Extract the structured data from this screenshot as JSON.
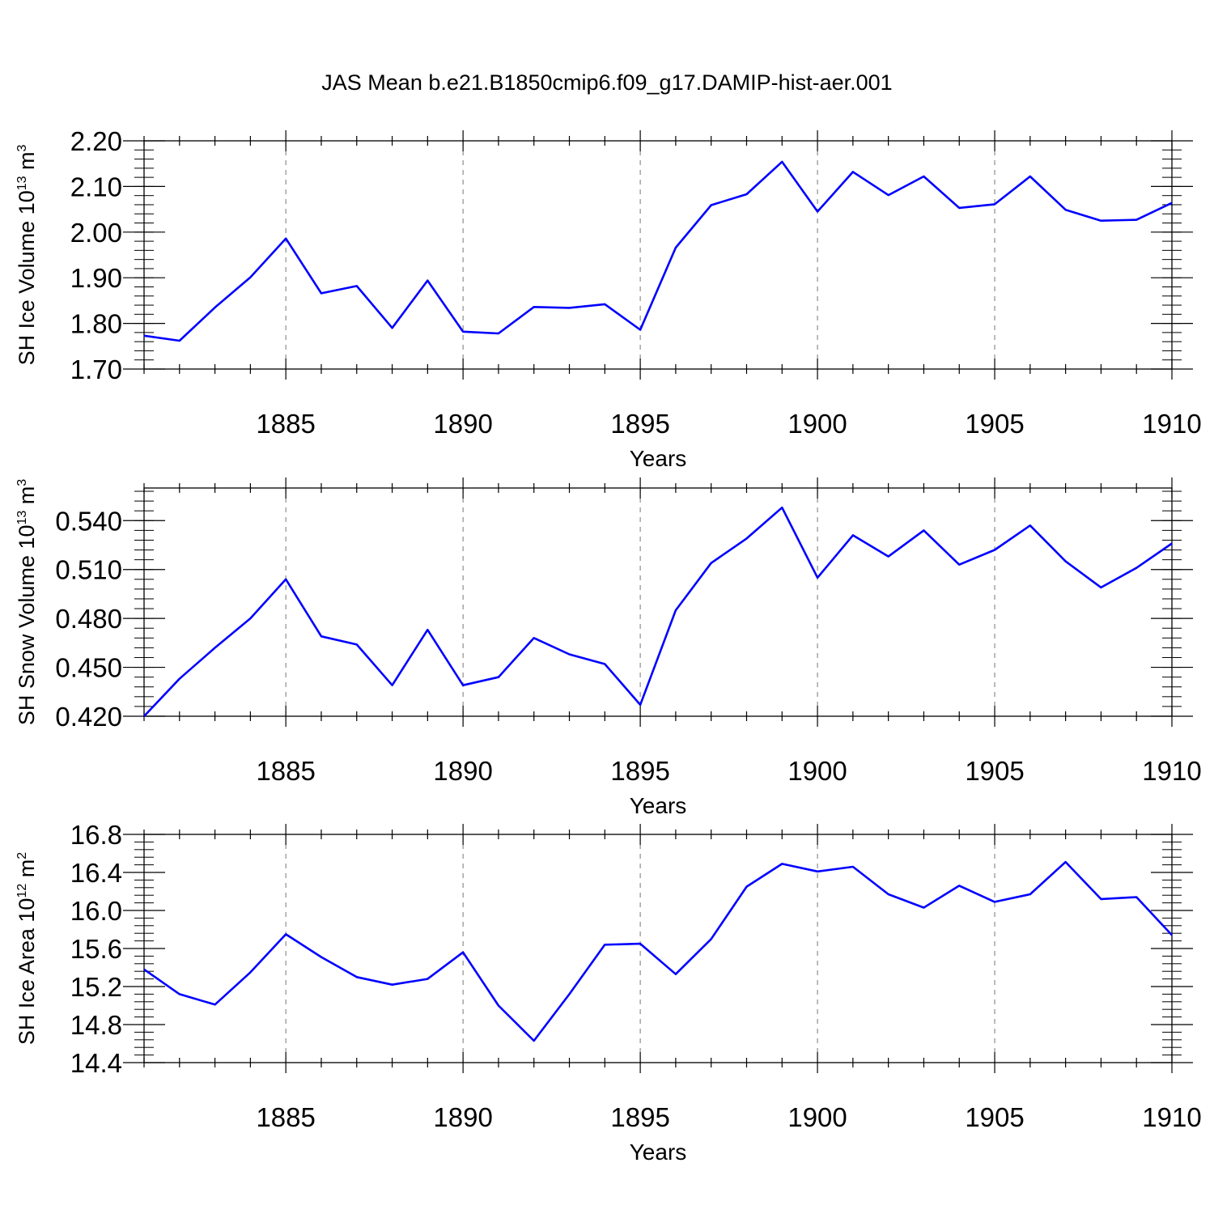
{
  "title": "JAS Mean b.e21.B1850cmip6.f09_g17.DAMIP-hist-aer.001",
  "colors": {
    "series": "#0000ff",
    "axis": "#000000",
    "grid": "#777777"
  },
  "chart_data": [
    {
      "type": "line",
      "ylabel_text": "SH Ice Volume 10",
      "ylabel_exp": "13",
      "ylabel_unit": " m",
      "ylabel_unit_exp": "3",
      "xlabel": "Years",
      "xlim": [
        1881,
        1910
      ],
      "ylim": [
        1.7,
        2.2
      ],
      "yticks": [
        1.7,
        1.8,
        1.9,
        2.0,
        2.1,
        2.2
      ],
      "ytick_labels": [
        "1.70",
        "1.80",
        "1.90",
        "2.00",
        "2.10",
        "2.20"
      ],
      "yminor_step": 0.02,
      "xticks": [
        1885,
        1890,
        1895,
        1900,
        1905,
        1910
      ],
      "xtick_labels": [
        "1885",
        "1890",
        "1895",
        "1900",
        "1905",
        "1910"
      ],
      "grid": "vertical-dashed",
      "x": [
        1881,
        1882,
        1883,
        1884,
        1885,
        1886,
        1887,
        1888,
        1889,
        1890,
        1891,
        1892,
        1893,
        1894,
        1895,
        1896,
        1897,
        1898,
        1899,
        1900,
        1901,
        1902,
        1903,
        1904,
        1905,
        1906,
        1907,
        1908,
        1909,
        1910
      ],
      "values": [
        1.773,
        1.762,
        1.835,
        1.901,
        1.986,
        1.866,
        1.882,
        1.79,
        1.894,
        1.782,
        1.778,
        1.836,
        1.834,
        1.842,
        1.786,
        1.966,
        2.059,
        2.083,
        2.154,
        2.045,
        2.132,
        2.081,
        2.122,
        2.053,
        2.061,
        2.122,
        2.049,
        2.025,
        2.027,
        2.064
      ]
    },
    {
      "type": "line",
      "ylabel_text": "SH Snow Volume 10",
      "ylabel_exp": "13",
      "ylabel_unit": " m",
      "ylabel_unit_exp": "3",
      "xlabel": "Years",
      "xlim": [
        1881,
        1910
      ],
      "ylim": [
        0.42,
        0.56
      ],
      "yticks": [
        0.42,
        0.45,
        0.48,
        0.51,
        0.54
      ],
      "ytick_labels": [
        "0.420",
        "0.450",
        "0.480",
        "0.510",
        "0.540"
      ],
      "yminor_step": 0.006,
      "xticks": [
        1885,
        1890,
        1895,
        1900,
        1905,
        1910
      ],
      "xtick_labels": [
        "1885",
        "1890",
        "1895",
        "1900",
        "1905",
        "1910"
      ],
      "grid": "vertical-dashed",
      "x": [
        1881,
        1882,
        1883,
        1884,
        1885,
        1886,
        1887,
        1888,
        1889,
        1890,
        1891,
        1892,
        1893,
        1894,
        1895,
        1896,
        1897,
        1898,
        1899,
        1900,
        1901,
        1902,
        1903,
        1904,
        1905,
        1906,
        1907,
        1908,
        1909,
        1910
      ],
      "values": [
        0.42,
        0.443,
        0.462,
        0.48,
        0.504,
        0.469,
        0.464,
        0.439,
        0.473,
        0.439,
        0.444,
        0.468,
        0.458,
        0.452,
        0.427,
        0.485,
        0.514,
        0.529,
        0.548,
        0.505,
        0.531,
        0.518,
        0.534,
        0.513,
        0.522,
        0.537,
        0.515,
        0.499,
        0.511,
        0.526
      ]
    },
    {
      "type": "line",
      "ylabel_text": "SH Ice Area 10",
      "ylabel_exp": "12",
      "ylabel_unit": " m",
      "ylabel_unit_exp": "2",
      "xlabel": "Years",
      "xlim": [
        1881,
        1910
      ],
      "ylim": [
        14.4,
        16.8
      ],
      "yticks": [
        14.4,
        14.8,
        15.2,
        15.6,
        16.0,
        16.4,
        16.8
      ],
      "ytick_labels": [
        "14.4",
        "14.8",
        "15.2",
        "15.6",
        "16.0",
        "16.4",
        "16.8"
      ],
      "yminor_step": 0.08,
      "xticks": [
        1885,
        1890,
        1895,
        1900,
        1905,
        1910
      ],
      "xtick_labels": [
        "1885",
        "1890",
        "1895",
        "1900",
        "1905",
        "1910"
      ],
      "grid": "vertical-dashed",
      "x": [
        1881,
        1882,
        1883,
        1884,
        1885,
        1886,
        1887,
        1888,
        1889,
        1890,
        1891,
        1892,
        1893,
        1894,
        1895,
        1896,
        1897,
        1898,
        1899,
        1900,
        1901,
        1902,
        1903,
        1904,
        1905,
        1906,
        1907,
        1908,
        1909,
        1910
      ],
      "values": [
        15.38,
        15.12,
        15.01,
        15.35,
        15.75,
        15.51,
        15.3,
        15.22,
        15.28,
        15.56,
        15.0,
        14.63,
        15.12,
        15.64,
        15.65,
        15.33,
        15.7,
        16.25,
        16.49,
        16.41,
        16.46,
        16.17,
        16.03,
        16.26,
        16.09,
        16.17,
        16.51,
        16.12,
        16.14,
        15.74
      ]
    }
  ]
}
